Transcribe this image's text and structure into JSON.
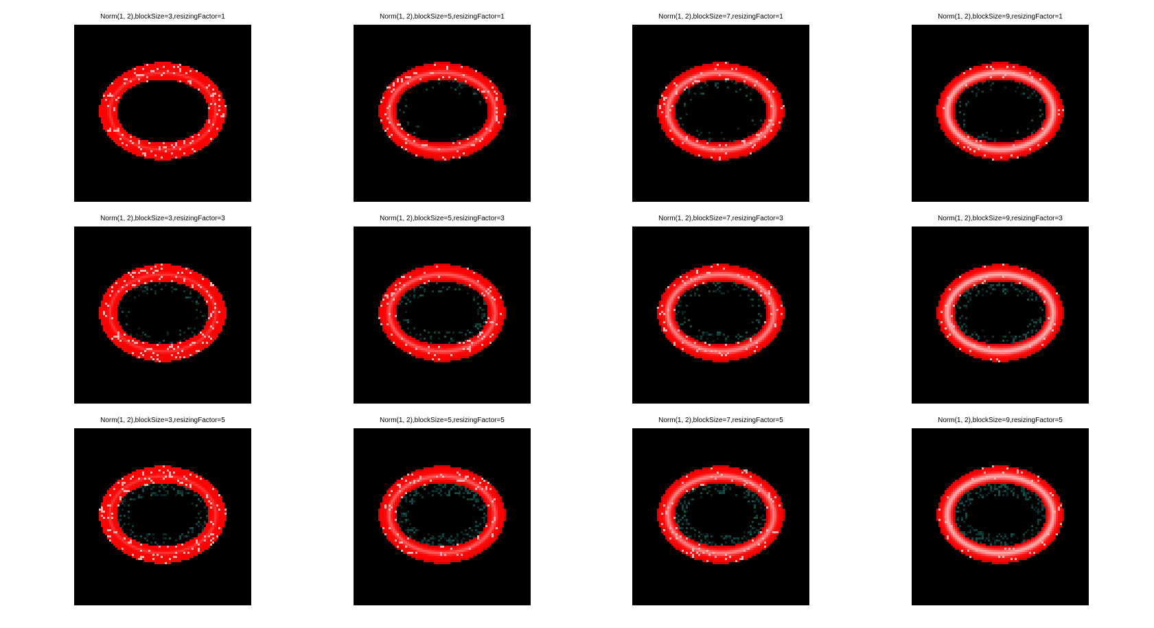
{
  "colors": {
    "background": "#ffffff",
    "image_background": "#000000",
    "ring": "#ff0000",
    "ring_highlight": "#ffd0d0",
    "noise": "#1e6f6a"
  },
  "panels": [
    {
      "title": "Norm(1, 2),blockSize=3,resizingFactor=1",
      "block_size": 3,
      "resizing_factor": 1
    },
    {
      "title": "Norm(1, 2),blockSize=5,resizingFactor=1",
      "block_size": 5,
      "resizing_factor": 1
    },
    {
      "title": "Norm(1, 2),blockSize=7,resizingFactor=1",
      "block_size": 7,
      "resizing_factor": 1
    },
    {
      "title": "Norm(1, 2),blockSize=9,resizingFactor=1",
      "block_size": 9,
      "resizing_factor": 1
    },
    {
      "title": "Norm(1, 2),blockSize=3,resizingFactor=3",
      "block_size": 3,
      "resizing_factor": 3
    },
    {
      "title": "Norm(1, 2),blockSize=5,resizingFactor=3",
      "block_size": 5,
      "resizing_factor": 3
    },
    {
      "title": "Norm(1, 2),blockSize=7,resizingFactor=3",
      "block_size": 7,
      "resizing_factor": 3
    },
    {
      "title": "Norm(1, 2),blockSize=9,resizingFactor=3",
      "block_size": 9,
      "resizing_factor": 3
    },
    {
      "title": "Norm(1, 2),blockSize=3,resizingFactor=5",
      "block_size": 3,
      "resizing_factor": 5
    },
    {
      "title": "Norm(1, 2),blockSize=5,resizingFactor=5",
      "block_size": 5,
      "resizing_factor": 5
    },
    {
      "title": "Norm(1, 2),blockSize=7,resizingFactor=5",
      "block_size": 7,
      "resizing_factor": 5
    },
    {
      "title": "Norm(1, 2),blockSize=9,resizingFactor=5",
      "block_size": 9,
      "resizing_factor": 5
    }
  ]
}
